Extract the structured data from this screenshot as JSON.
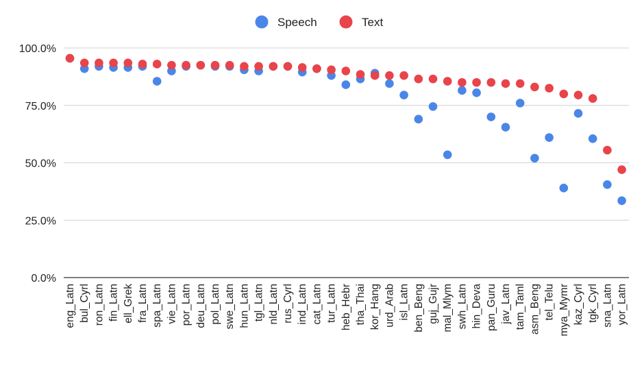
{
  "chart_data": {
    "type": "scatter",
    "categories": [
      "eng_Latn",
      "bul_Cyrl",
      "ron_Latn",
      "fin_Latn",
      "ell_Grek",
      "fra_Latn",
      "spa_Latn",
      "vie_Latn",
      "por_Latn",
      "deu_Latn",
      "pol_Latn",
      "swe_Latn",
      "hun_Latn",
      "tgl_Latn",
      "nld_Latn",
      "rus_Cyrl",
      "ind_Latn",
      "cat_Latn",
      "tur_Latn",
      "heb_Hebr",
      "tha_Thai",
      "kor_Hang",
      "urd_Arab",
      "isl_Latn",
      "ben_Beng",
      "guj_Gujr",
      "mal_Mlym",
      "swh_Latn",
      "hin_Deva",
      "pan_Guru",
      "jav_Latn",
      "tam_Taml",
      "asm_Beng",
      "tel_Telu",
      "mya_Mymr",
      "kaz_Cyrl",
      "tgk_Cyrl",
      "sna_Latn",
      "yor_Latn"
    ],
    "series": [
      {
        "name": "Speech",
        "color": "#4a86e8",
        "values": [
          95.5,
          91,
          92,
          91.5,
          91.5,
          92,
          85.5,
          90,
          92,
          92.5,
          92,
          92,
          90.5,
          90,
          92,
          92,
          89.5,
          91,
          88,
          84,
          86.5,
          89,
          84.5,
          79.5,
          69,
          74.5,
          53.5,
          81.5,
          80.5,
          70,
          65.5,
          76,
          52,
          61,
          39,
          71.5,
          60.5,
          40.5,
          33.5
        ]
      },
      {
        "name": "Text",
        "color": "#e8444a",
        "values": [
          95.5,
          93.5,
          93.5,
          93.5,
          93.5,
          93,
          93,
          92.5,
          92.5,
          92.5,
          92.5,
          92.5,
          92,
          92,
          92,
          92,
          91.5,
          91,
          90.5,
          90,
          88.5,
          88,
          88,
          88,
          86.5,
          86.5,
          85.5,
          85,
          85,
          85,
          84.5,
          84.5,
          83,
          82.5,
          80,
          79.5,
          78,
          55.5,
          47
        ]
      }
    ],
    "yticks": [
      "0.0%",
      "25.0%",
      "50.0%",
      "75.0%",
      "100.0%"
    ],
    "ylim": [
      0,
      100
    ],
    "grid": true,
    "legend_position": "top"
  }
}
